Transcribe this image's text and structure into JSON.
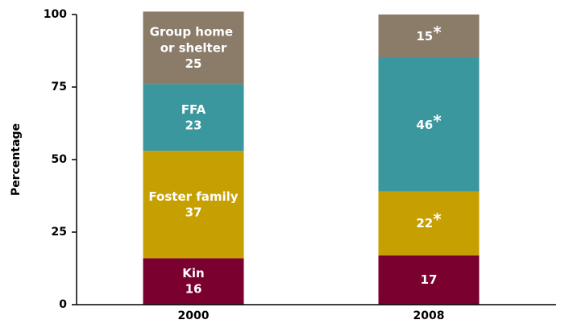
{
  "chart_data": {
    "type": "stacked_bar",
    "y_label": "Percentage",
    "categories": [
      "2000",
      "2008"
    ],
    "series": [
      {
        "name": "Kin",
        "color": "#7a0030",
        "values": [
          16,
          17
        ],
        "value_labels": [
          "16",
          "17"
        ]
      },
      {
        "name": "Foster family",
        "color": "#c6a000",
        "values": [
          37,
          22
        ],
        "value_labels": [
          "37",
          "22*"
        ]
      },
      {
        "name": "FFA",
        "color": "#3b979e",
        "values": [
          23,
          46
        ],
        "value_labels": [
          "23",
          "46*"
        ]
      },
      {
        "name": "Group home or shelter",
        "color": "#8b7b69",
        "values": [
          25,
          15
        ],
        "value_labels": [
          "25",
          "15*"
        ]
      }
    ],
    "ylim": [
      0,
      100
    ],
    "yticks": [
      0,
      25,
      50,
      75,
      100
    ]
  }
}
